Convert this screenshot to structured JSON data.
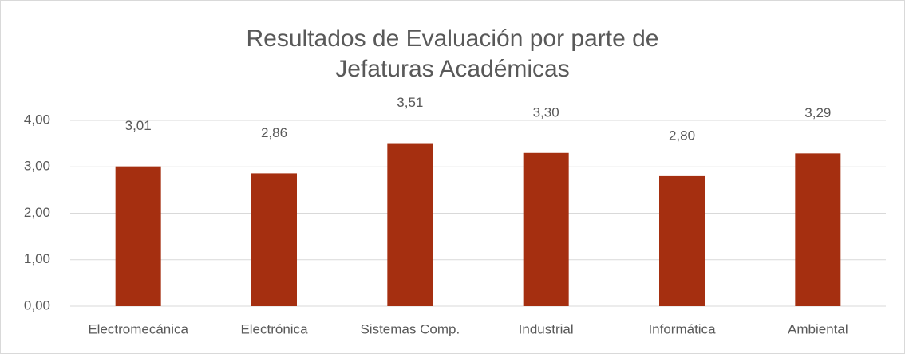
{
  "chart_data": {
    "type": "bar",
    "title": "Resultados de Evaluación por parte de Jefaturas Académicas",
    "categories": [
      "Electromecánica",
      "Electrónica",
      "Sistemas Comp.",
      "Industrial",
      "Informática",
      "Ambiental"
    ],
    "values": [
      3.01,
      2.86,
      3.51,
      3.3,
      2.8,
      3.29
    ],
    "value_labels": [
      "3,01",
      "2,86",
      "3,51",
      "3,30",
      "2,80",
      "3,29"
    ],
    "color": "#a52f10",
    "ylim": [
      0,
      4
    ],
    "yticks": [
      {
        "value": 0,
        "label": "0,00"
      },
      {
        "value": 1,
        "label": "1,00"
      },
      {
        "value": 2,
        "label": "2,00"
      },
      {
        "value": 3,
        "label": "3,00"
      },
      {
        "value": 4,
        "label": "4,00"
      }
    ],
    "grid": true
  }
}
